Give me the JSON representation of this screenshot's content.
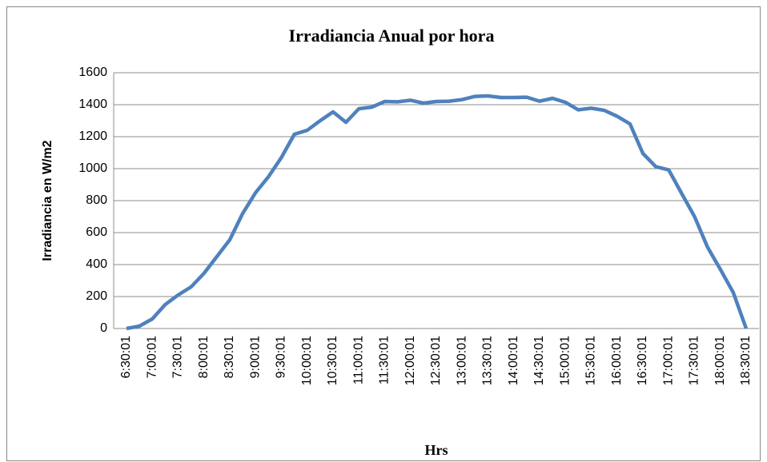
{
  "chart_data": {
    "type": "line",
    "title": "Irradiancia Anual por hora",
    "x_label": "Hrs",
    "y_label": "Irradiancia en W/m2",
    "categories": [
      "6:30:01",
      null,
      "7:00:01",
      null,
      "7:30:01",
      null,
      "8:00:01",
      null,
      "8:30:01",
      null,
      "9:00:01",
      null,
      "9:30:01",
      null,
      "10:00:01",
      null,
      "10:30:01",
      null,
      "11:00:01",
      null,
      "11:30:01",
      null,
      "12:00:01",
      null,
      "12:30:01",
      null,
      "13:00:01",
      null,
      "13:30:01",
      null,
      "14:00:01",
      null,
      "14:30:01",
      null,
      "15:00:01",
      null,
      "15:30:01",
      null,
      "16:00:01",
      null,
      "16:30:01",
      null,
      "17:00:01",
      null,
      "17:30:01",
      null,
      "18:00:01",
      null,
      "18:30:01"
    ],
    "values": [
      0,
      15,
      60,
      150,
      210,
      260,
      345,
      450,
      555,
      720,
      850,
      950,
      1070,
      1215,
      1240,
      1300,
      1355,
      1290,
      1375,
      1385,
      1420,
      1418,
      1428,
      1410,
      1420,
      1422,
      1432,
      1452,
      1455,
      1445,
      1445,
      1447,
      1422,
      1440,
      1415,
      1368,
      1378,
      1365,
      1328,
      1280,
      1095,
      1012,
      992,
      845,
      700,
      510,
      370,
      225,
      0
    ],
    "color": "#4f81bd",
    "ylim": [
      0,
      1600
    ],
    "yticks": [
      0,
      200,
      400,
      600,
      800,
      1000,
      1200,
      1400,
      1600
    ],
    "grid": true
  }
}
